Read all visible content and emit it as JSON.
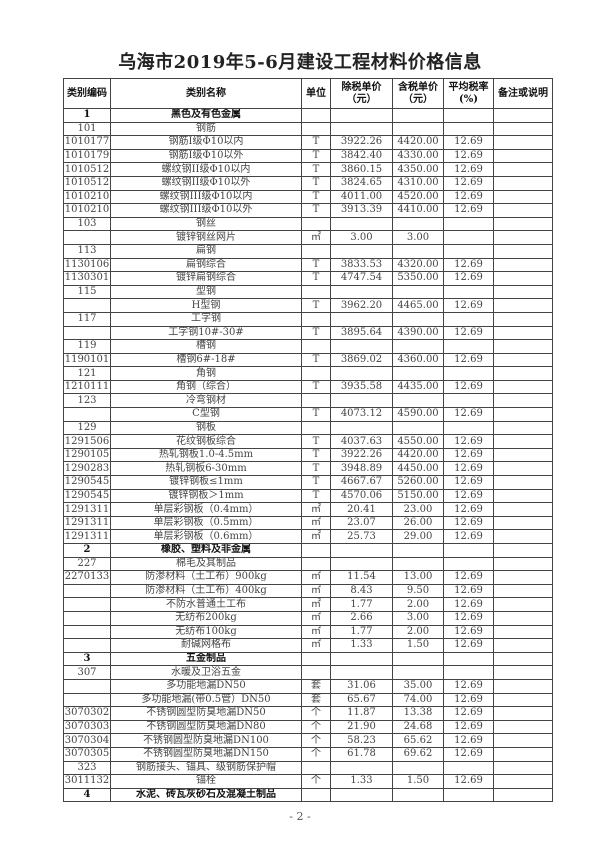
{
  "title": "乌海市2019年5-6月建设工程材料价格信息",
  "columns": [
    "类别编码",
    "类别名称",
    "单位",
    "除税单价（元）",
    "含税单价（元）",
    "平均税率(%)",
    "备注或说明"
  ],
  "rows": [
    [
      "1",
      "黑色及有色金属",
      "",
      "",
      "",
      "",
      true
    ],
    [
      "101",
      "钢筋",
      "",
      "",
      "",
      "",
      false
    ],
    [
      "1010177",
      "钢筋I级Φ10以内",
      "T",
      "3922.26",
      "4420.00",
      "12.69",
      false
    ],
    [
      "1010179",
      "钢筋I级Φ10以外",
      "T",
      "3842.40",
      "4330.00",
      "12.69",
      false
    ],
    [
      "1010512",
      "螺纹钢II级Φ10以内",
      "T",
      "3860.15",
      "4350.00",
      "12.69",
      false
    ],
    [
      "1010512",
      "螺纹钢II级Φ10以外",
      "T",
      "3824.65",
      "4310.00",
      "12.69",
      false
    ],
    [
      "1010210",
      "螺纹钢III级Φ10以内",
      "T",
      "4011.00",
      "4520.00",
      "12.69",
      false
    ],
    [
      "1010210",
      "螺纹钢III级Φ10以外",
      "T",
      "3913.39",
      "4410.00",
      "12.69",
      false
    ],
    [
      "103",
      "钢丝",
      "",
      "",
      "",
      "",
      false
    ],
    [
      "",
      "镀锌钢丝网片",
      "㎡",
      "3.00",
      "3.00",
      "",
      false
    ],
    [
      "113",
      "扁钢",
      "",
      "",
      "",
      "",
      false
    ],
    [
      "1130106",
      "扁钢综合",
      "T",
      "3833.53",
      "4320.00",
      "12.69",
      false
    ],
    [
      "1130301",
      "镀锌扁钢综合",
      "T",
      "4747.54",
      "5350.00",
      "12.69",
      false
    ],
    [
      "115",
      "型钢",
      "",
      "",
      "",
      "",
      false
    ],
    [
      "",
      "H型钢",
      "T",
      "3962.20",
      "4465.00",
      "12.69",
      false
    ],
    [
      "117",
      "工字钢",
      "",
      "",
      "",
      "",
      false
    ],
    [
      "",
      "工字钢10#-30#",
      "T",
      "3895.64",
      "4390.00",
      "12.69",
      false
    ],
    [
      "119",
      "槽钢",
      "",
      "",
      "",
      "",
      false
    ],
    [
      "1190101",
      "槽钢6#-18#",
      "T",
      "3869.02",
      "4360.00",
      "12.69",
      false
    ],
    [
      "121",
      "角钢",
      "",
      "",
      "",
      "",
      false
    ],
    [
      "1210111",
      "角钢（综合）",
      "T",
      "3935.58",
      "4435.00",
      "12.69",
      false
    ],
    [
      "123",
      "冷弯钢材",
      "",
      "",
      "",
      "",
      false
    ],
    [
      "",
      "C型钢",
      "T",
      "4073.12",
      "4590.00",
      "12.69",
      false
    ],
    [
      "129",
      "钢板",
      "",
      "",
      "",
      "",
      false
    ],
    [
      "1291506",
      "花纹钢板综合",
      "T",
      "4037.63",
      "4550.00",
      "12.69",
      false
    ],
    [
      "1290105",
      "热轧钢板1.0-4.5mm",
      "T",
      "3922.26",
      "4420.00",
      "12.69",
      false
    ],
    [
      "1290283",
      "热轧钢板6-30mm",
      "T",
      "3948.89",
      "4450.00",
      "12.69",
      false
    ],
    [
      "1290545",
      "镀锌钢板≤1mm",
      "T",
      "4667.67",
      "5260.00",
      "12.69",
      false
    ],
    [
      "1290545",
      "镀锌钢板＞1mm",
      "T",
      "4570.06",
      "5150.00",
      "12.69",
      false
    ],
    [
      "1291311",
      "单层彩钢板（0.4mm）",
      "㎡",
      "20.41",
      "23.00",
      "12.69",
      false
    ],
    [
      "1291311",
      "单层彩钢板（0.5mm）",
      "㎡",
      "23.07",
      "26.00",
      "12.69",
      false
    ],
    [
      "1291311",
      "单层彩钢板（0.6mm）",
      "㎡",
      "25.73",
      "29.00",
      "12.69",
      false
    ],
    [
      "2",
      "橡胶、塑料及非金属",
      "",
      "",
      "",
      "",
      true
    ],
    [
      "227",
      "棉毛及其制品",
      "",
      "",
      "",
      "",
      false
    ],
    [
      "2270133",
      "防渗材料（土工布）900kg",
      "㎡",
      "11.54",
      "13.00",
      "12.69",
      false
    ],
    [
      "",
      "防渗材料（土工布）400kg",
      "㎡",
      "8.43",
      "9.50",
      "12.69",
      false
    ],
    [
      "",
      "不防水普通土工布",
      "㎡",
      "1.77",
      "2.00",
      "12.69",
      false
    ],
    [
      "",
      "无纺布200kg",
      "㎡",
      "2.66",
      "3.00",
      "12.69",
      false
    ],
    [
      "",
      "无纺布100kg",
      "㎡",
      "1.77",
      "2.00",
      "12.69",
      false
    ],
    [
      "",
      "耐碱网格布",
      "㎡",
      "1.33",
      "1.50",
      "12.69",
      false
    ],
    [
      "3",
      "五金制品",
      "",
      "",
      "",
      "",
      true
    ],
    [
      "307",
      "水暖及卫浴五金",
      "",
      "",
      "",
      "",
      false
    ],
    [
      "",
      "多功能地漏DN50",
      "套",
      "31.06",
      "35.00",
      "12.69",
      false
    ],
    [
      "",
      "多功能地漏(带0.5管）DN50",
      "套",
      "65.67",
      "74.00",
      "12.69",
      false
    ],
    [
      "3070302",
      "不锈钢圆型防臭地漏DN50",
      "个",
      "11.87",
      "13.38",
      "12.69",
      false
    ],
    [
      "3070303",
      "不锈钢圆型防臭地漏DN80",
      "个",
      "21.90",
      "24.68",
      "12.69",
      false
    ],
    [
      "3070304",
      "不锈钢圆型防臭地漏DN100",
      "个",
      "58.23",
      "65.62",
      "12.69",
      false
    ],
    [
      "3070305",
      "不锈钢圆型防臭地漏DN150",
      "个",
      "61.78",
      "69.62",
      "12.69",
      false
    ],
    [
      "323",
      "钢筋接头、锚具、级钢筋保护帽",
      "",
      "",
      "",
      "",
      false
    ],
    [
      "3011132",
      "锚栓",
      "个",
      "1.33",
      "1.50",
      "12.69",
      false
    ],
    [
      "4",
      "水泥、砖瓦灰砂石及混凝土制品",
      "",
      "",
      "",
      "",
      true
    ]
  ],
  "footer": "- 2 -"
}
